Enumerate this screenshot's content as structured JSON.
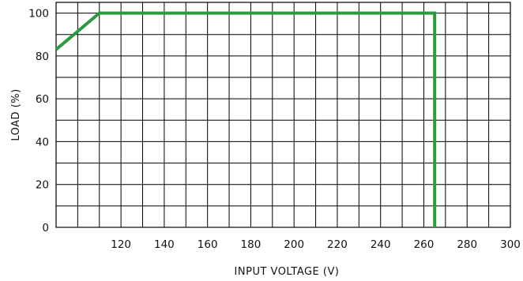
{
  "chart_data": {
    "type": "line",
    "title": "",
    "xlabel": "INPUT VOLTAGE (V)",
    "ylabel": "LOAD (%)",
    "xlim": [
      90,
      300
    ],
    "ylim": [
      0,
      105
    ],
    "x_grid_step": 10,
    "y_grid_step": 10,
    "grid": true,
    "xticks": [
      120,
      140,
      160,
      180,
      200,
      220,
      240,
      260,
      280,
      300
    ],
    "xtick_labels": [
      "120",
      "140",
      "160",
      "180",
      "200",
      "220",
      "240",
      "260",
      "280",
      "300"
    ],
    "yticks": [
      0,
      20,
      40,
      60,
      80,
      100
    ],
    "ytick_labels": [
      "0",
      "20",
      "40",
      "60",
      "80",
      "100"
    ],
    "series": [
      {
        "color": "#2e9a3e",
        "x": [
          90,
          110,
          265,
          265
        ],
        "y": [
          83,
          100,
          100,
          0
        ]
      }
    ]
  }
}
